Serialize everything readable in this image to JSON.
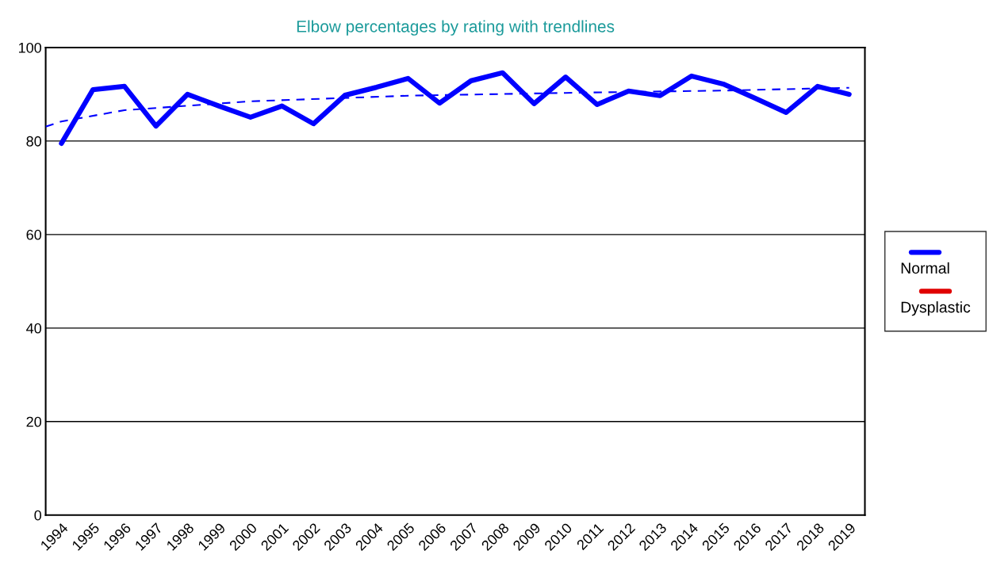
{
  "chart_data": {
    "type": "line",
    "title": "Elbow percentages by rating with trendlines",
    "x": [
      1994,
      1995,
      1996,
      1997,
      1998,
      1999,
      2000,
      2001,
      2002,
      2003,
      2004,
      2005,
      2006,
      2007,
      2008,
      2009,
      2010,
      2011,
      2012,
      2013,
      2014,
      2015,
      2016,
      2017,
      2018,
      2019
    ],
    "series": [
      {
        "name": "Normal",
        "color": "#0000ff",
        "values": [
          79.5,
          91.0,
          91.7,
          83.2,
          90.0,
          87.5,
          85.1,
          87.5,
          83.7,
          89.8,
          91.5,
          93.4,
          88.1,
          92.9,
          94.6,
          88.0,
          93.7,
          87.8,
          90.7,
          89.7,
          93.9,
          92.2,
          89.2,
          86.1,
          91.7,
          90.0
        ]
      },
      {
        "name": "Dysplastic",
        "color": "#e00000",
        "values": [
          null,
          null,
          null,
          null,
          null,
          null,
          null,
          null,
          null,
          null,
          null,
          null,
          null,
          null,
          null,
          null,
          null,
          null,
          null,
          null,
          null,
          null,
          null,
          null,
          null,
          null
        ]
      },
      {
        "type": "line",
        "color": "#0000ff",
        "line_style": "dashed",
        "x": [
          1993.5,
          1994,
          1996,
          2000,
          2005,
          2010,
          2015,
          2019
        ],
        "values": [
          83.1,
          84.2,
          86.6,
          88.5,
          89.7,
          90.3,
          90.8,
          91.4
        ]
      }
    ],
    "xlim": [
      1993.5,
      2019.5
    ],
    "xticks": [
      1994,
      1995,
      1996,
      1997,
      1998,
      1999,
      2000,
      2001,
      2002,
      2003,
      2004,
      2005,
      2006,
      2007,
      2008,
      2009,
      2010,
      2011,
      2012,
      2013,
      2014,
      2015,
      2016,
      2017,
      2018,
      2019
    ],
    "ylim": [
      0,
      100
    ],
    "yticks": [
      0,
      20,
      40,
      60,
      80,
      100
    ],
    "grid": "y",
    "legend": "right"
  }
}
